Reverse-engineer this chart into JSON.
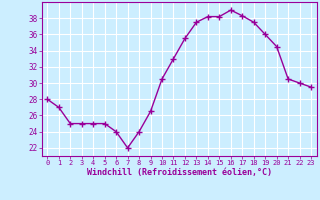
{
  "x": [
    0,
    1,
    2,
    3,
    4,
    5,
    6,
    7,
    8,
    9,
    10,
    11,
    12,
    13,
    14,
    15,
    16,
    17,
    18,
    19,
    20,
    21,
    22,
    23
  ],
  "y": [
    28,
    27,
    25,
    25,
    25,
    25,
    24,
    22,
    24,
    26.5,
    30.5,
    33,
    35.5,
    37.5,
    38.2,
    38.2,
    39,
    38.3,
    37.5,
    36,
    34.5,
    30.5,
    30,
    29.5
  ],
  "line_color": "#990099",
  "marker": "+",
  "marker_size": 4,
  "bg_color": "#cceeff",
  "grid_color": "#ffffff",
  "xlabel": "Windchill (Refroidissement éolien,°C)",
  "xlabel_color": "#990099",
  "tick_color": "#990099",
  "label_color": "#990099",
  "ylim": [
    21,
    40
  ],
  "xlim": [
    -0.5,
    23.5
  ],
  "yticks": [
    22,
    24,
    26,
    28,
    30,
    32,
    34,
    36,
    38
  ],
  "xticks": [
    0,
    1,
    2,
    3,
    4,
    5,
    6,
    7,
    8,
    9,
    10,
    11,
    12,
    13,
    14,
    15,
    16,
    17,
    18,
    19,
    20,
    21,
    22,
    23
  ],
  "figsize": [
    3.2,
    2.0
  ],
  "dpi": 100
}
